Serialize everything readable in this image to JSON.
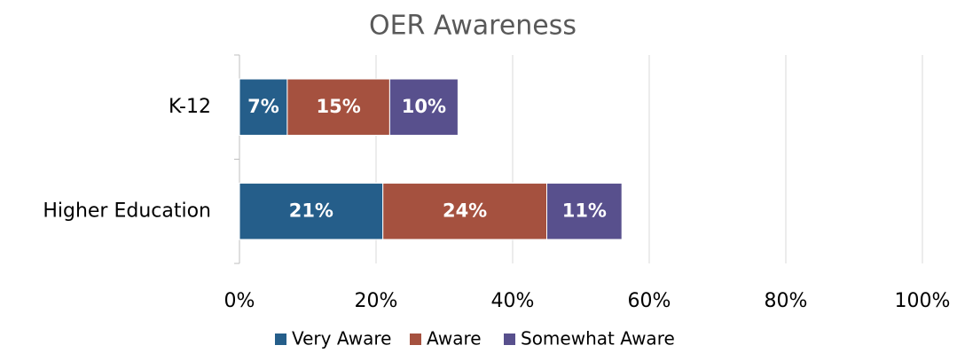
{
  "chart_data": {
    "type": "stacked_bar_horizontal",
    "title": "OER Awareness",
    "categories": [
      "K-12",
      "Higher Education"
    ],
    "series": [
      {
        "name": "Very Aware",
        "color": "#255e8a",
        "values": [
          7,
          21
        ],
        "value_labels": [
          "7%",
          "21%"
        ]
      },
      {
        "name": "Aware",
        "color": "#a5513f",
        "values": [
          15,
          24
        ],
        "value_labels": [
          "15%",
          "24%"
        ]
      },
      {
        "name": "Somewhat Aware",
        "color": "#58508d",
        "values": [
          10,
          11
        ],
        "value_labels": [
          "10%",
          "11%"
        ]
      }
    ],
    "xlim": [
      0,
      100
    ],
    "xticks": [
      {
        "value": 0,
        "label": "0%"
      },
      {
        "value": 20,
        "label": "20%"
      },
      {
        "value": 40,
        "label": "40%"
      },
      {
        "value": 60,
        "label": "60%"
      },
      {
        "value": 80,
        "label": "80%"
      },
      {
        "value": 100,
        "label": "100%"
      }
    ],
    "grid": true,
    "legend": "bottom"
  }
}
